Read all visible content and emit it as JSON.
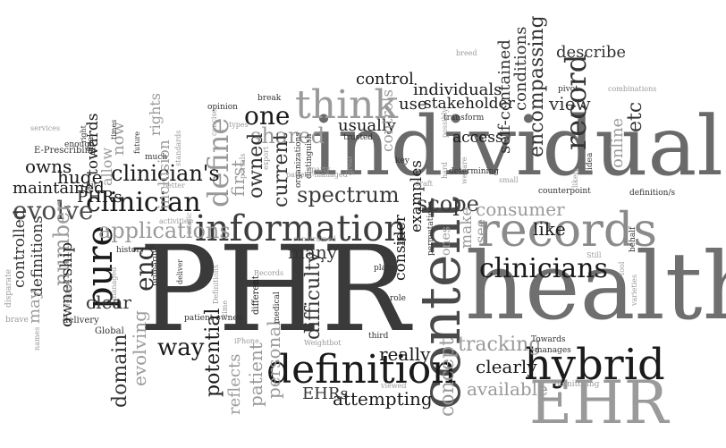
{
  "words": [
    {
      "text": "PHR",
      "color": "#3a3a3a",
      "vertical": false
    },
    {
      "text": "health",
      "color": "#6f6f6f",
      "vertical": false
    },
    {
      "text": "individual",
      "color": "#6a6a6a",
      "vertical": false
    },
    {
      "text": "content",
      "color": "#4a4a4a",
      "vertical": true
    },
    {
      "text": "EHR",
      "color": "#9a9a9a",
      "vertical": false
    },
    {
      "text": "definition",
      "color": "#1a1a1a",
      "vertical": false
    },
    {
      "text": "hybrid",
      "color": "#1a1a1a",
      "vertical": false
    },
    {
      "text": "records",
      "color": "#8a8a8a",
      "vertical": false
    },
    {
      "text": "information",
      "color": "#3e3e3e",
      "vertical": false
    },
    {
      "text": "think",
      "color": "#9a9a9a",
      "vertical": false
    },
    {
      "text": "define",
      "color": "#999999",
      "vertical": true
    },
    {
      "text": "pure",
      "color": "#1a1a1a",
      "vertical": true
    },
    {
      "text": "clinicians",
      "color": "#1a1a1a",
      "vertical": false
    },
    {
      "text": "clinician",
      "color": "#1a1a1a",
      "vertical": false
    },
    {
      "text": "clinician's",
      "color": "#1a1a1a",
      "vertical": false
    },
    {
      "text": "one",
      "color": "#1a1a1a",
      "vertical": false
    },
    {
      "text": "record",
      "color": "#333333",
      "vertical": true
    },
    {
      "text": "applications",
      "color": "#9a9a9a",
      "vertical": false
    },
    {
      "text": "spectrum",
      "color": "#3a3a3a",
      "vertical": false
    },
    {
      "text": "evolve",
      "color": "#4a4a4a",
      "vertical": false
    },
    {
      "text": "scope",
      "color": "#3a3a3a",
      "vertical": false
    },
    {
      "text": "consumer",
      "color": "#9a9a9a",
      "vertical": false
    },
    {
      "text": "shared",
      "color": "#9a9a9a",
      "vertical": false
    },
    {
      "text": "encompassing",
      "color": "#333333",
      "vertical": true
    },
    {
      "text": "end",
      "color": "#333333",
      "vertical": true
    },
    {
      "text": "number",
      "color": "#9a9a9a",
      "vertical": true
    },
    {
      "text": "way",
      "color": "#1a1a1a",
      "vertical": false
    },
    {
      "text": "potential",
      "color": "#1a1a1a",
      "vertical": true
    },
    {
      "text": "difficulty",
      "color": "#333333",
      "vertical": true
    },
    {
      "text": "many",
      "color": "#333333",
      "vertical": false
    },
    {
      "text": "tracking",
      "color": "#9a9a9a",
      "vertical": false
    },
    {
      "text": "really",
      "color": "#1a1a1a",
      "vertical": false
    },
    {
      "text": "clearly",
      "color": "#1a1a1a",
      "vertical": false
    },
    {
      "text": "available",
      "color": "#9a9a9a",
      "vertical": false
    },
    {
      "text": "concept",
      "color": "#9a9a9a",
      "vertical": true
    },
    {
      "text": "attempting",
      "color": "#1a1a1a",
      "vertical": false
    },
    {
      "text": "EHRs",
      "color": "#333333",
      "vertical": false
    },
    {
      "text": "patient",
      "color": "#9a9a9a",
      "vertical": true
    },
    {
      "text": "reflects",
      "color": "#9a9a9a",
      "vertical": true
    },
    {
      "text": "personal",
      "color": "#9a9a9a",
      "vertical": true
    },
    {
      "text": "domain",
      "color": "#333333",
      "vertical": true
    },
    {
      "text": "evolving",
      "color": "#9a9a9a",
      "vertical": true
    },
    {
      "text": "current",
      "color": "#333333",
      "vertical": true
    },
    {
      "text": "owned",
      "color": "#333333",
      "vertical": true
    },
    {
      "text": "first",
      "color": "#9a9a9a",
      "vertical": true
    },
    {
      "text": "like",
      "color": "#1a1a1a",
      "vertical": false
    },
    {
      "text": "etc",
      "color": "#333333",
      "vertical": true
    },
    {
      "text": "view",
      "color": "#333333",
      "vertical": false
    },
    {
      "text": "online",
      "color": "#9a9a9a",
      "vertical": true
    },
    {
      "text": "describe",
      "color": "#333333",
      "vertical": false
    },
    {
      "text": "control",
      "color": "#1a1a1a",
      "vertical": false
    },
    {
      "text": "individuals",
      "color": "#1a1a1a",
      "vertical": false
    },
    {
      "text": "use",
      "color": "#1a1a1a",
      "vertical": false
    },
    {
      "text": "stakeholder",
      "color": "#1a1a1a",
      "vertical": false
    },
    {
      "text": "usually",
      "color": "#1a1a1a",
      "vertical": false
    },
    {
      "text": "access",
      "color": "#1a1a1a",
      "vertical": false
    },
    {
      "text": "self-contained",
      "color": "#333333",
      "vertical": true
    },
    {
      "text": "conditions",
      "color": "#333333",
      "vertical": true
    },
    {
      "text": "controls",
      "color": "#9a9a9a",
      "vertical": true
    },
    {
      "text": "consider",
      "color": "#1a1a1a",
      "vertical": true
    },
    {
      "text": "examples",
      "color": "#1a1a1a",
      "vertical": true
    },
    {
      "text": "make",
      "color": "#9a9a9a",
      "vertical": true
    },
    {
      "text": "see",
      "color": "#9a9a9a",
      "vertical": true
    },
    {
      "text": "ones",
      "color": "#9a9a9a",
      "vertical": true
    },
    {
      "text": "owns",
      "color": "#1a1a1a",
      "vertical": false
    },
    {
      "text": "huge",
      "color": "#1a1a1a",
      "vertical": false
    },
    {
      "text": "PHRs",
      "color": "#1a1a1a",
      "vertical": false
    },
    {
      "text": "maintained",
      "color": "#1a1a1a",
      "vertical": false
    },
    {
      "text": "towards",
      "color": "#1a1a1a",
      "vertical": true
    },
    {
      "text": "controlled",
      "color": "#333333",
      "vertical": true
    },
    {
      "text": "definitions",
      "color": "#333333",
      "vertical": true
    },
    {
      "text": "ownership",
      "color": "#1a1a1a",
      "vertical": true
    },
    {
      "text": "clear",
      "color": "#333333",
      "vertical": false
    },
    {
      "text": "may",
      "color": "#9a9a9a",
      "vertical": true
    },
    {
      "text": "now",
      "color": "#9a9a9a",
      "vertical": true
    },
    {
      "text": "rights",
      "color": "#9a9a9a",
      "vertical": true
    },
    {
      "text": "allow",
      "color": "#9a9a9a",
      "vertical": true
    },
    {
      "text": "inclusion",
      "color": "#9a9a9a",
      "vertical": true
    },
    {
      "text": "E-Prescribing",
      "color": "#333333",
      "vertical": false
    },
    {
      "text": "enough",
      "color": "#333333",
      "vertical": false
    },
    {
      "text": "final",
      "color": "#333333",
      "vertical": true
    },
    {
      "text": "services",
      "color": "#9a9a9a",
      "vertical": false
    },
    {
      "text": "Global",
      "color": "#333333",
      "vertical": false
    },
    {
      "text": "delivery",
      "color": "#333333",
      "vertical": false
    },
    {
      "text": "brave",
      "color": "#9a9a9a",
      "vertical": false
    },
    {
      "text": "disparate",
      "color": "#9a9a9a",
      "vertical": true
    },
    {
      "text": "informed",
      "color": "#9a9a9a",
      "vertical": true
    },
    {
      "text": "managed",
      "color": "#9a9a9a",
      "vertical": true
    },
    {
      "text": "history",
      "color": "#333333",
      "vertical": false
    },
    {
      "text": "primarily",
      "color": "#333333",
      "vertical": true
    },
    {
      "text": "patient-owned",
      "color": "#333333",
      "vertical": false
    },
    {
      "text": "Definitions",
      "color": "#9a9a9a",
      "vertical": true
    },
    {
      "text": "different",
      "color": "#1a1a1a",
      "vertical": true
    },
    {
      "text": "deliver",
      "color": "#333333",
      "vertical": true
    },
    {
      "text": "iPhone",
      "color": "#9a9a9a",
      "vertical": false
    },
    {
      "text": "Records",
      "color": "#9a9a9a",
      "vertical": false
    },
    {
      "text": "medical",
      "color": "#333333",
      "vertical": true
    },
    {
      "text": "Weightbot",
      "color": "#9a9a9a",
      "vertical": false
    },
    {
      "text": "third",
      "color": "#333333",
      "vertical": false
    },
    {
      "text": "role",
      "color": "#333333",
      "vertical": false
    },
    {
      "text": "plans",
      "color": "#333333",
      "vertical": false
    },
    {
      "text": "Towards",
      "color": "#333333",
      "vertical": false
    },
    {
      "text": "manages",
      "color": "#333333",
      "vertical": false
    },
    {
      "text": "monitoring",
      "color": "#9a9a9a",
      "vertical": false
    },
    {
      "text": "viewed",
      "color": "#9a9a9a",
      "vertical": false
    },
    {
      "text": "varieties",
      "color": "#9a9a9a",
      "vertical": true
    },
    {
      "text": "tool",
      "color": "#9a9a9a",
      "vertical": true
    },
    {
      "text": "behalf",
      "color": "#333333",
      "vertical": true
    },
    {
      "text": "Still",
      "color": "#9a9a9a",
      "vertical": false
    },
    {
      "text": "welfare",
      "color": "#9a9a9a",
      "vertical": true
    },
    {
      "text": "possibly",
      "color": "#9a9a9a",
      "vertical": true
    },
    {
      "text": "permutations",
      "color": "#333333",
      "vertical": true
    },
    {
      "text": "draft",
      "color": "#9a9a9a",
      "vertical": false
    },
    {
      "text": "determining",
      "color": "#333333",
      "vertical": false
    },
    {
      "text": "small",
      "color": "#9a9a9a",
      "vertical": false
    },
    {
      "text": "counterpoint",
      "color": "#333333",
      "vertical": false
    },
    {
      "text": "definition/s",
      "color": "#333333",
      "vertical": false
    },
    {
      "text": "key",
      "color": "#333333",
      "vertical": false
    },
    {
      "text": "likely",
      "color": "#9a9a9a",
      "vertical": true
    },
    {
      "text": "idea",
      "color": "#333333",
      "vertical": true
    },
    {
      "text": "hard",
      "color": "#9a9a9a",
      "vertical": true
    },
    {
      "text": "great",
      "color": "#9a9a9a",
      "vertical": true
    },
    {
      "text": "distinguish",
      "color": "#333333",
      "vertical": true
    },
    {
      "text": "trusted",
      "color": "#333333",
      "vertical": false
    },
    {
      "text": "transform",
      "color": "#333333",
      "vertical": false
    },
    {
      "text": "party",
      "color": "#9a9a9a",
      "vertical": false
    },
    {
      "text": "patient-managed",
      "color": "#9a9a9a",
      "vertical": false
    },
    {
      "text": "organizations",
      "color": "#333333",
      "vertical": true
    },
    {
      "text": "export",
      "color": "#9a9a9a",
      "vertical": true
    },
    {
      "text": "portals",
      "color": "#9a9a9a",
      "vertical": true
    },
    {
      "text": "types",
      "color": "#9a9a9a",
      "vertical": false
    },
    {
      "text": "opinion",
      "color": "#333333",
      "vertical": false
    },
    {
      "text": "break",
      "color": "#333333",
      "vertical": false
    },
    {
      "text": "magic",
      "color": "#9a9a9a",
      "vertical": true
    },
    {
      "text": "standards",
      "color": "#9a9a9a",
      "vertical": true
    },
    {
      "text": "concise",
      "color": "#9a9a9a",
      "vertical": true
    },
    {
      "text": "much",
      "color": "#333333",
      "vertical": false
    },
    {
      "text": "better",
      "color": "#9a9a9a",
      "vertical": false
    },
    {
      "text": "bit",
      "color": "#333333",
      "vertical": false
    },
    {
      "text": "activities",
      "color": "#9a9a9a",
      "vertical": false
    },
    {
      "text": "constrained",
      "color": "#9a9a9a",
      "vertical": false
    },
    {
      "text": "future",
      "color": "#333333",
      "vertical": true
    },
    {
      "text": "times",
      "color": "#333333",
      "vertical": true
    },
    {
      "text": "right",
      "color": "#333333",
      "vertical": true
    },
    {
      "text": "names",
      "color": "#9a9a9a",
      "vertical": true
    },
    {
      "text": "time",
      "color": "#9a9a9a",
      "vertical": true
    },
    {
      "text": "breed",
      "color": "#9a9a9a",
      "vertical": false
    },
    {
      "text": "pivot",
      "color": "#333333",
      "vertical": false
    },
    {
      "text": "combinations",
      "color": "#9a9a9a",
      "vertical": false
    },
    {
      "text": "eg",
      "color": "#333333",
      "vertical": false
    }
  ]
}
